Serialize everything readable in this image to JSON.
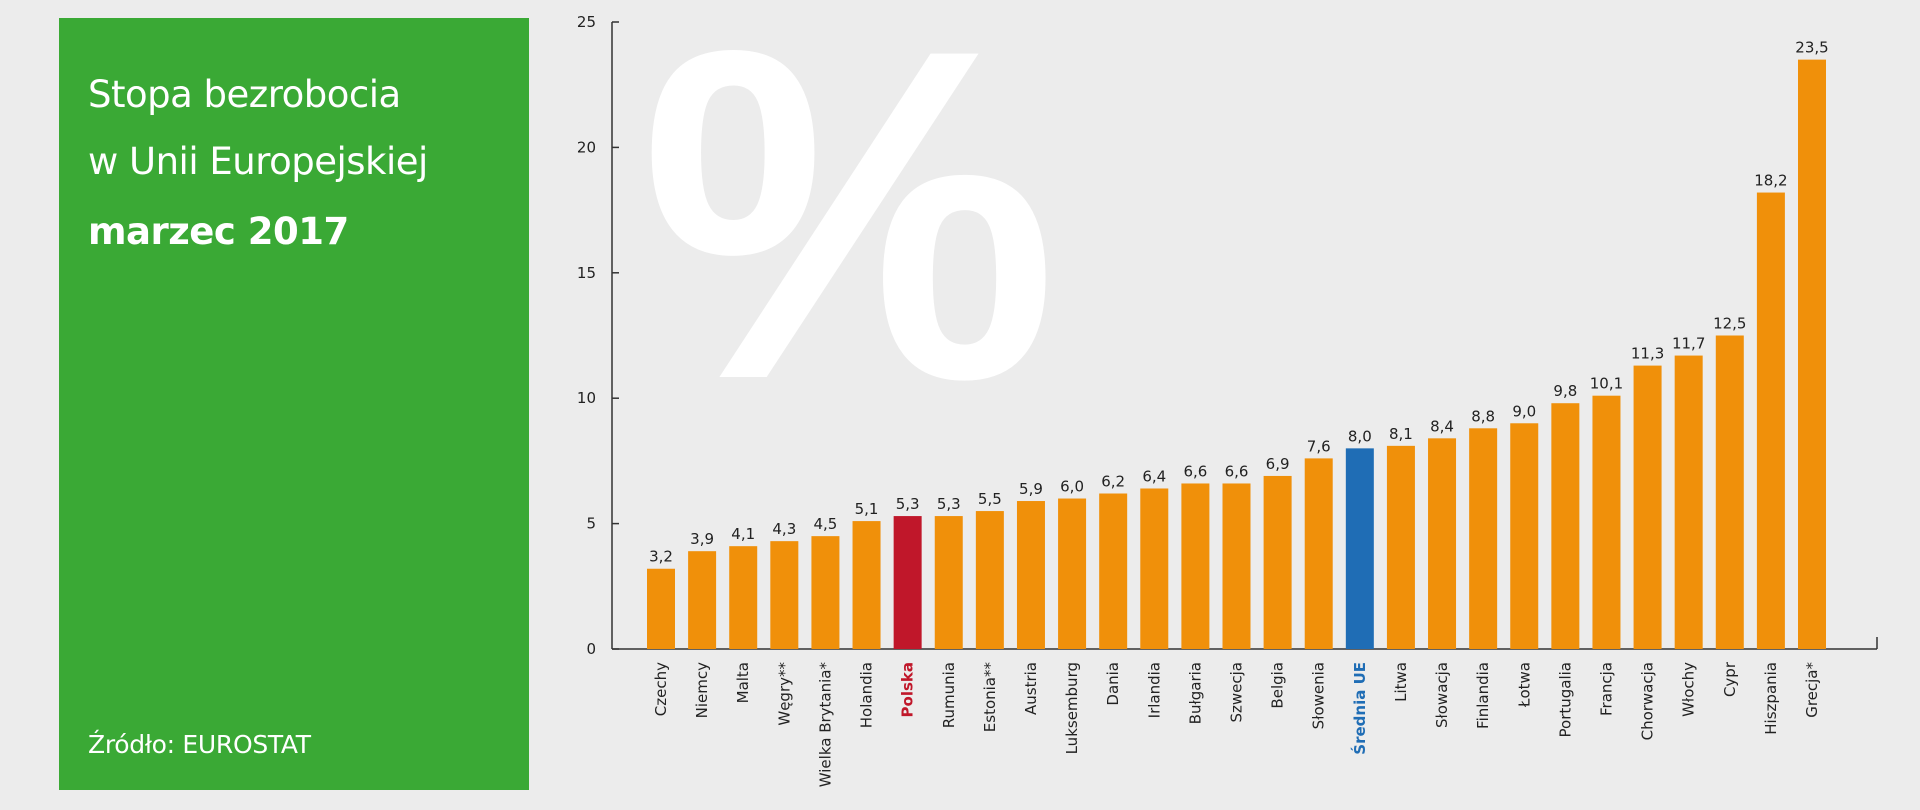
{
  "panel": {
    "title_line1": "Stopa bezrobocia",
    "title_line2": "w Unii Europejskiej",
    "period": "marzec 2017",
    "source": "Źródło: EUROSTAT"
  },
  "watermark": "%",
  "chart_data": {
    "type": "bar",
    "title": "Stopa bezrobocia w Unii Europejskiej marzec 2017",
    "xlabel": "",
    "ylabel": "",
    "ylim": [
      0,
      25
    ],
    "yticks": [
      "0",
      "5",
      "10",
      "15",
      "20",
      "25"
    ],
    "grid": false,
    "categories": [
      "Czechy",
      "Niemcy",
      "Malta",
      "Węgry**",
      "Wielka Brytania*",
      "Holandia",
      "Polska",
      "Rumunia",
      "Estonia**",
      "Austria",
      "Luksemburg",
      "Dania",
      "Irlandia",
      "Bułgaria",
      "Szwecja",
      "Belgia",
      "Słowenia",
      "Średnia UE",
      "Litwa",
      "Słowacja",
      "Finlandia",
      "Łotwa",
      "Portugalia",
      "Francja",
      "Chorwacja",
      "Włochy",
      "Cypr",
      "Hiszpania",
      "Grecja*"
    ],
    "values": [
      3.2,
      3.9,
      4.1,
      4.3,
      4.5,
      5.1,
      5.3,
      5.3,
      5.5,
      5.9,
      6.0,
      6.2,
      6.4,
      6.6,
      6.6,
      6.9,
      7.6,
      8.0,
      8.1,
      8.4,
      8.8,
      9.0,
      9.8,
      10.1,
      11.3,
      11.7,
      12.5,
      18.2,
      23.5
    ],
    "value_labels": [
      "3,2",
      "3,9",
      "4,1",
      "4,3",
      "4,5",
      "5,1",
      "5,3",
      "5,3",
      "5,5",
      "5,9",
      "6,0",
      "6,2",
      "6,4",
      "6,6",
      "6,6",
      "6,9",
      "7,6",
      "8,0",
      "8,1",
      "8,4",
      "8,8",
      "9,0",
      "9,8",
      "10,1",
      "11,3",
      "11,7",
      "12,5",
      "18,2",
      "23,5"
    ],
    "highlight": {
      "Polska": "#c0172a",
      "Średnia UE": "#1f6db5"
    },
    "bar_color": "#f0900a"
  },
  "colors": {
    "panel": "#3aa935",
    "background": "#ececec",
    "axis": "#333333",
    "text": "#222222"
  }
}
